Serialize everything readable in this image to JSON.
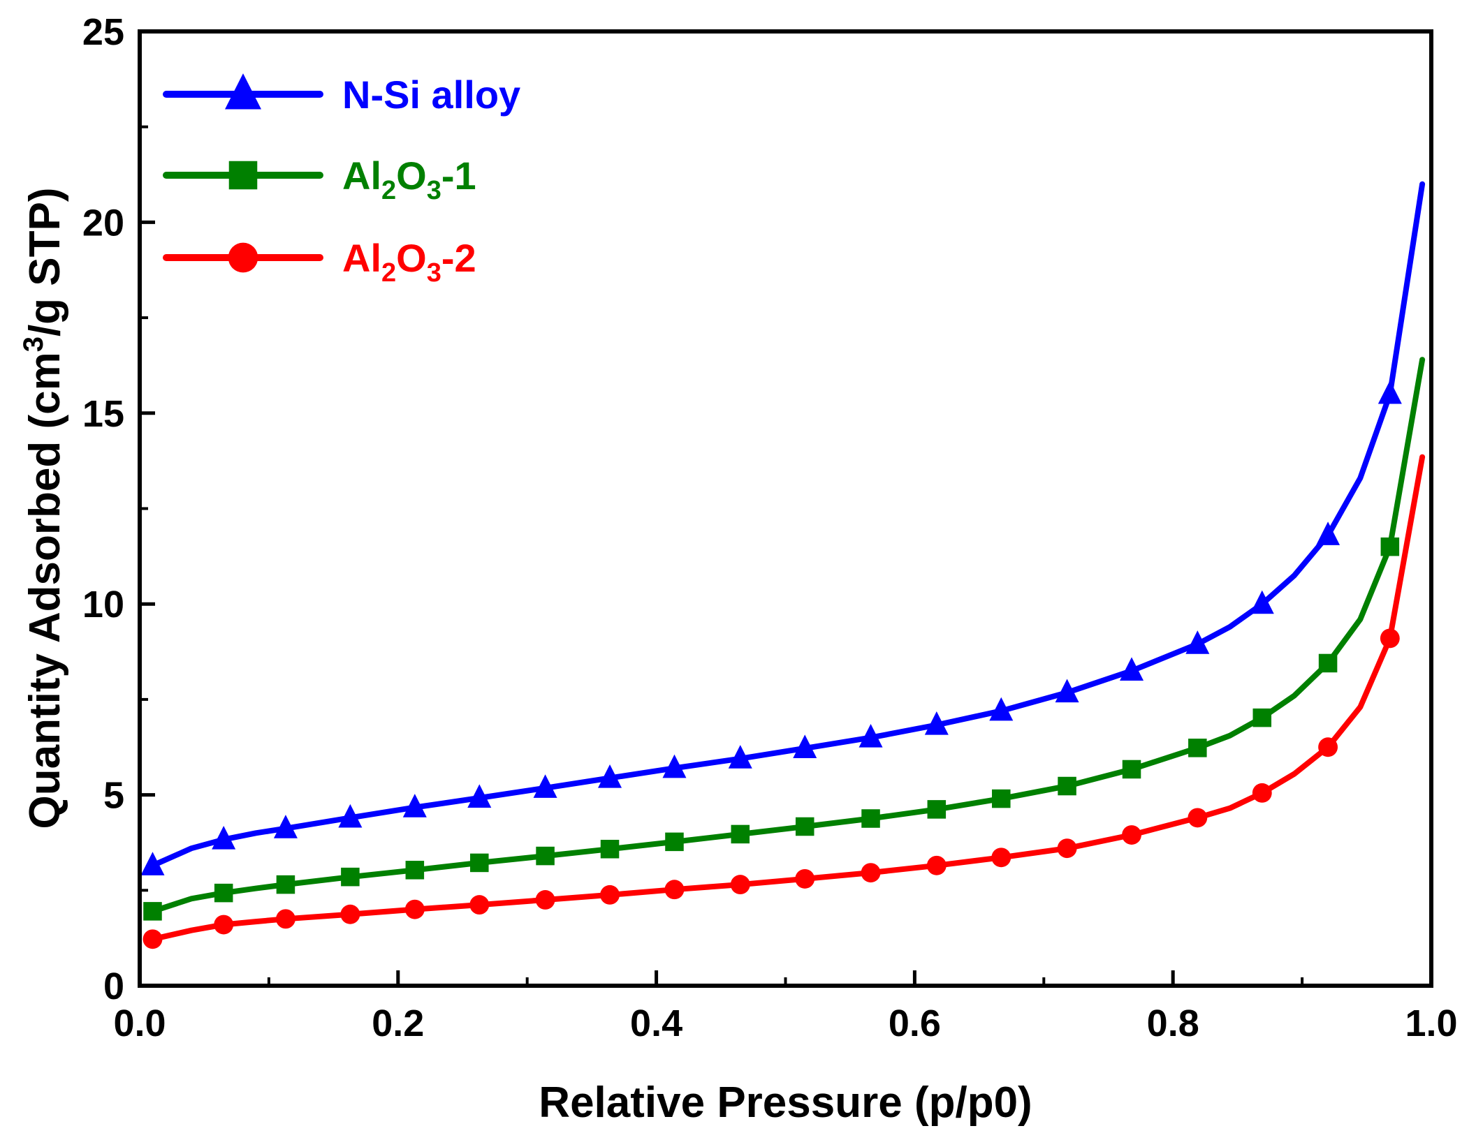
{
  "chart_data": {
    "type": "line",
    "title": "",
    "xlabel": "Relative Pressure (p/p0)",
    "ylabel_parts": {
      "before": "Quantity Adsorbed (cm",
      "sup": "3",
      "after": "/g STP)"
    },
    "xlim": [
      0.0,
      1.0
    ],
    "ylim": [
      0,
      25
    ],
    "xticks": [
      0.0,
      0.2,
      0.4,
      0.6,
      0.8,
      1.0
    ],
    "xtick_labels": [
      "0.0",
      "0.2",
      "0.4",
      "0.6",
      "0.8",
      "1.0"
    ],
    "yticks": [
      0,
      5,
      10,
      15,
      20,
      25
    ],
    "ytick_labels": [
      "0",
      "5",
      "10",
      "15",
      "20",
      "25"
    ],
    "grid": false,
    "legend_position": "top-left",
    "series": [
      {
        "name": "N-Si alloy",
        "legend_parts": {
          "main": "N-Si alloy"
        },
        "color": "#0000ff",
        "marker": "triangle",
        "x": [
          0.01,
          0.04,
          0.065,
          0.09,
          0.113,
          0.163,
          0.213,
          0.263,
          0.314,
          0.364,
          0.414,
          0.465,
          0.515,
          0.566,
          0.617,
          0.667,
          0.718,
          0.768,
          0.819,
          0.844,
          0.869,
          0.894,
          0.92,
          0.945,
          0.968,
          0.993
        ],
        "y": [
          3.15,
          3.6,
          3.83,
          4.0,
          4.12,
          4.4,
          4.67,
          4.92,
          5.18,
          5.44,
          5.7,
          5.95,
          6.22,
          6.5,
          6.83,
          7.2,
          7.68,
          8.25,
          8.95,
          9.4,
          10.0,
          10.75,
          11.8,
          13.3,
          15.5,
          21.0
        ],
        "marker_idx": [
          0,
          2,
          4,
          5,
          6,
          7,
          8,
          9,
          10,
          11,
          12,
          13,
          14,
          15,
          16,
          17,
          18,
          20,
          22,
          24
        ]
      },
      {
        "name": "Al2O3-1",
        "legend_parts": {
          "a": "Al",
          "sub1": "2",
          "b": "O",
          "sub2": "3",
          "c": "-1"
        },
        "color": "#008000",
        "marker": "square",
        "x": [
          0.01,
          0.04,
          0.065,
          0.09,
          0.113,
          0.163,
          0.213,
          0.263,
          0.314,
          0.364,
          0.414,
          0.465,
          0.515,
          0.566,
          0.617,
          0.667,
          0.718,
          0.768,
          0.819,
          0.844,
          0.869,
          0.894,
          0.92,
          0.945,
          0.968,
          0.993
        ],
        "y": [
          1.95,
          2.28,
          2.43,
          2.55,
          2.65,
          2.85,
          3.03,
          3.22,
          3.4,
          3.58,
          3.77,
          3.97,
          4.17,
          4.38,
          4.62,
          4.9,
          5.23,
          5.67,
          6.23,
          6.55,
          7.02,
          7.6,
          8.45,
          9.6,
          11.5,
          16.4
        ],
        "marker_idx": [
          0,
          2,
          4,
          5,
          6,
          7,
          8,
          9,
          10,
          11,
          12,
          13,
          14,
          15,
          16,
          17,
          18,
          20,
          22,
          24
        ]
      },
      {
        "name": "Al2O3-2",
        "legend_parts": {
          "a": "Al",
          "sub1": "2",
          "b": "O",
          "sub2": "3",
          "c": "-2"
        },
        "color": "#ff0000",
        "marker": "circle",
        "x": [
          0.01,
          0.04,
          0.065,
          0.09,
          0.113,
          0.163,
          0.213,
          0.263,
          0.314,
          0.364,
          0.414,
          0.465,
          0.515,
          0.566,
          0.617,
          0.667,
          0.718,
          0.768,
          0.819,
          0.844,
          0.869,
          0.894,
          0.92,
          0.945,
          0.968,
          0.993
        ],
        "y": [
          1.22,
          1.45,
          1.6,
          1.68,
          1.75,
          1.87,
          2.0,
          2.12,
          2.25,
          2.38,
          2.52,
          2.65,
          2.8,
          2.96,
          3.15,
          3.36,
          3.6,
          3.95,
          4.4,
          4.65,
          5.05,
          5.55,
          6.25,
          7.3,
          9.1,
          13.85
        ],
        "marker_idx": [
          0,
          2,
          4,
          5,
          6,
          7,
          8,
          9,
          10,
          11,
          12,
          13,
          14,
          15,
          16,
          17,
          18,
          20,
          22,
          24
        ]
      }
    ]
  }
}
